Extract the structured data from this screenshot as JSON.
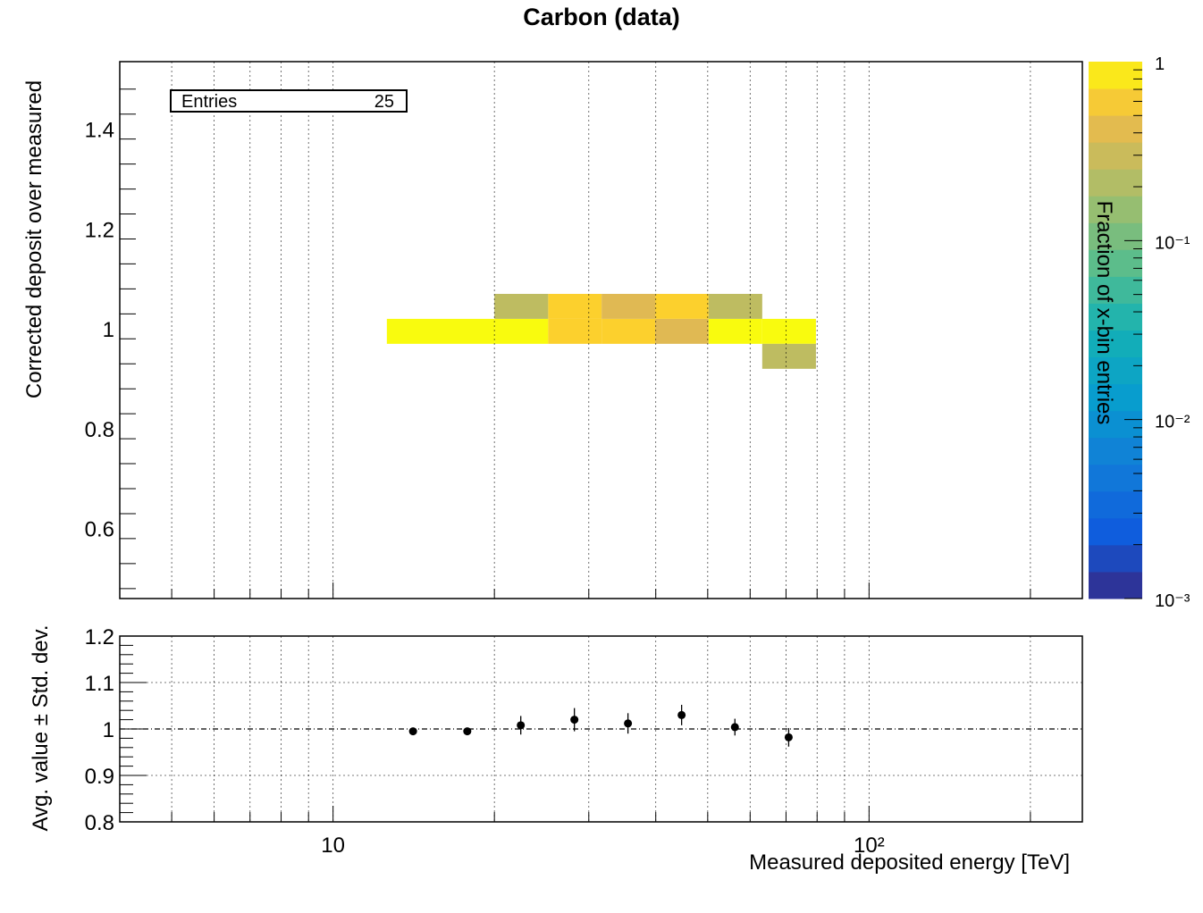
{
  "chart_data": [
    {
      "type": "heatmap",
      "title": "Carbon (data)",
      "ylabel": "Corrected deposit over measured",
      "zlabel": "Fraction of x-bin entries",
      "x_scale": "log",
      "xlim": [
        4,
        250
      ],
      "ylim": [
        0.46,
        1.535
      ],
      "x_tick_labels": [
        "10",
        "10²"
      ],
      "y_tick_labels": [
        "0.6",
        "0.8",
        "1",
        "1.2",
        "1.4"
      ],
      "z_scale": "log",
      "zlim": [
        0.001,
        1
      ],
      "z_tick_labels": [
        "10⁻³",
        "10⁻²",
        "10⁻¹",
        "1"
      ],
      "stats": {
        "label": "Entries",
        "value": "25"
      },
      "cells": [
        {
          "x0": 12.6,
          "x1": 20.0,
          "y0": 0.97,
          "y1": 1.02,
          "z": 1.0
        },
        {
          "x0": 20.0,
          "x1": 25.2,
          "y0": 0.97,
          "y1": 1.02,
          "z": 1.0
        },
        {
          "x0": 20.0,
          "x1": 25.2,
          "y0": 1.02,
          "y1": 1.07,
          "z": 0.25
        },
        {
          "x0": 25.2,
          "x1": 31.7,
          "y0": 0.97,
          "y1": 1.02,
          "z": 0.67
        },
        {
          "x0": 25.2,
          "x1": 31.7,
          "y0": 1.02,
          "y1": 1.07,
          "z": 0.67
        },
        {
          "x0": 31.7,
          "x1": 39.9,
          "y0": 0.97,
          "y1": 1.02,
          "z": 0.67
        },
        {
          "x0": 31.7,
          "x1": 39.9,
          "y0": 1.02,
          "y1": 1.07,
          "z": 0.4
        },
        {
          "x0": 39.9,
          "x1": 50.2,
          "y0": 0.97,
          "y1": 1.02,
          "z": 0.4
        },
        {
          "x0": 39.9,
          "x1": 50.2,
          "y0": 1.02,
          "y1": 1.07,
          "z": 0.67
        },
        {
          "x0": 50.2,
          "x1": 63.2,
          "y0": 0.97,
          "y1": 1.02,
          "z": 1.0
        },
        {
          "x0": 50.2,
          "x1": 63.2,
          "y0": 1.02,
          "y1": 1.07,
          "z": 0.25
        },
        {
          "x0": 63.2,
          "x1": 79.6,
          "y0": 0.97,
          "y1": 1.02,
          "z": 1.0
        },
        {
          "x0": 63.2,
          "x1": 79.6,
          "y0": 0.92,
          "y1": 0.97,
          "z": 0.25
        }
      ]
    },
    {
      "type": "scatter",
      "xlabel": "Measured deposited energy [TeV]",
      "ylabel": "Avg. value ± Std. dev.",
      "x_scale": "log",
      "xlim": [
        4,
        250
      ],
      "ylim": [
        0.8,
        1.2
      ],
      "x_tick_labels": [
        "10",
        "10²"
      ],
      "y_tick_labels": [
        "0.8",
        "0.9",
        "1",
        "1.1",
        "1.2"
      ],
      "reference_line": 1,
      "points": [
        {
          "x": 14.1,
          "y": 0.995,
          "err": 0.004
        },
        {
          "x": 17.8,
          "y": 0.995,
          "err": 0.004
        },
        {
          "x": 22.4,
          "y": 1.008,
          "err": 0.02
        },
        {
          "x": 28.2,
          "y": 1.02,
          "err": 0.025
        },
        {
          "x": 35.5,
          "y": 1.012,
          "err": 0.022
        },
        {
          "x": 44.7,
          "y": 1.03,
          "err": 0.022
        },
        {
          "x": 56.2,
          "y": 1.004,
          "err": 0.018
        },
        {
          "x": 70.8,
          "y": 0.982,
          "err": 0.02
        }
      ]
    }
  ]
}
